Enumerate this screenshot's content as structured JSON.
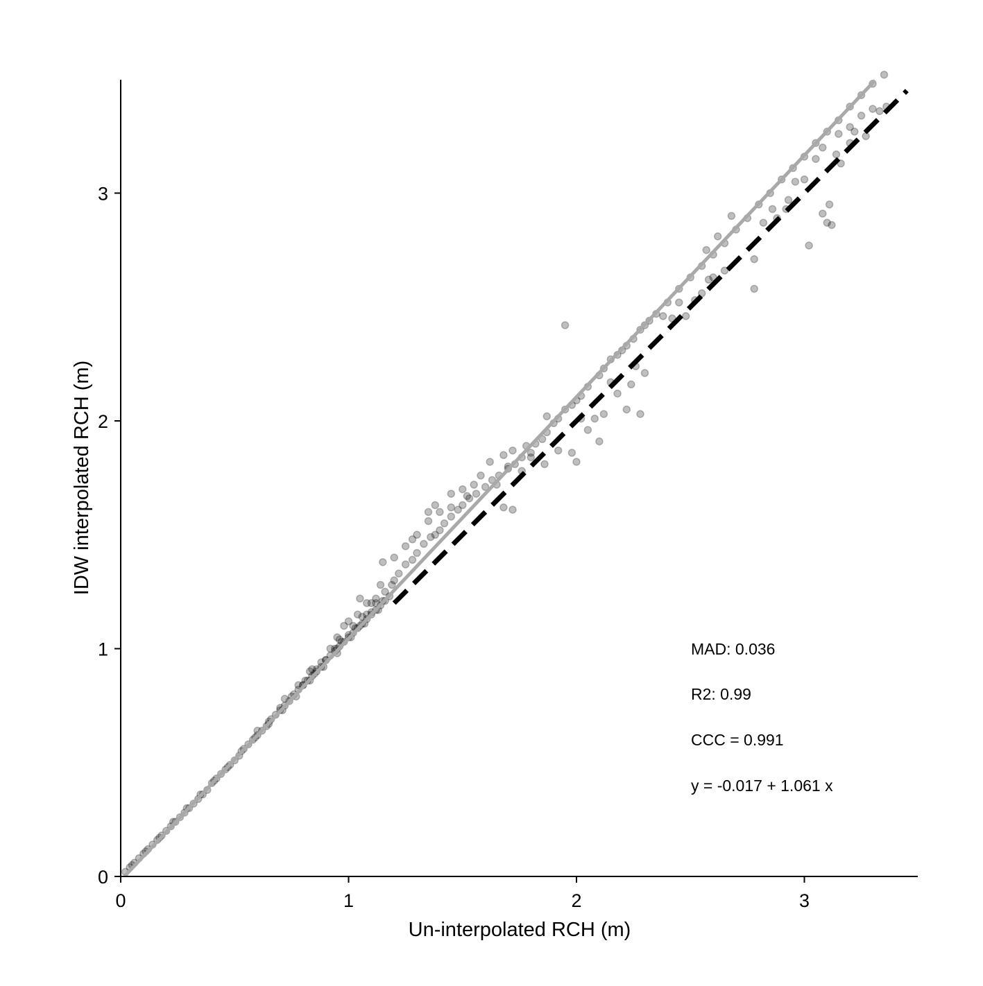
{
  "chart_data": {
    "type": "scatter",
    "xlabel": "Un-interpolated RCH (m)",
    "ylabel": "IDW interpolated RCH (m)",
    "xlim": [
      0,
      3.5
    ],
    "ylim": [
      0,
      3.5
    ],
    "x_ticks": [
      0,
      1,
      2,
      3
    ],
    "y_ticks": [
      0,
      1,
      2,
      3
    ],
    "x_tick_labels": [
      "0",
      "1",
      "2",
      "3"
    ],
    "y_tick_labels": [
      "0",
      "1",
      "2",
      "3"
    ],
    "grid": false,
    "marker_color": "#000000",
    "marker_opacity": 0.25,
    "fit_line_color": "#a9a9a9",
    "identity_line_color": "#000000",
    "annotations": {
      "mad": "MAD: 0.036",
      "r2": "R2: 0.99",
      "ccc": "CCC =  0.991",
      "equation": "y =  -0.017 + 1.061 x"
    },
    "fit_line": {
      "intercept": -0.017,
      "slope": 1.061,
      "x_range": [
        0.02,
        3.31
      ]
    },
    "identity_line": {
      "x_range": [
        1.2,
        3.45
      ]
    },
    "series": [
      {
        "x": [
          0.02,
          0.04,
          0.06,
          0.08,
          0.1,
          0.12,
          0.14,
          0.16,
          0.18,
          0.2,
          0.22,
          0.24,
          0.26,
          0.28,
          0.3,
          0.32,
          0.34,
          0.36,
          0.38,
          0.4,
          0.42,
          0.44,
          0.46,
          0.48,
          0.5,
          0.52,
          0.54,
          0.56,
          0.58,
          0.6,
          0.62,
          0.64,
          0.66,
          0.68,
          0.7,
          0.72,
          0.74,
          0.76,
          0.78,
          0.8,
          0.82,
          0.84,
          0.86,
          0.88,
          0.9,
          0.92,
          0.94,
          0.96,
          0.98,
          1.0,
          1.02,
          1.04,
          1.06,
          1.08,
          1.1,
          1.12,
          1.14,
          1.16,
          1.18,
          0.05,
          0.11,
          0.17,
          0.23,
          0.29,
          0.35,
          0.41,
          0.47,
          0.53,
          0.59,
          0.65,
          0.71,
          0.77,
          0.83,
          0.89,
          0.95,
          1.01,
          1.07,
          1.13,
          0.6,
          0.65,
          0.7,
          0.75,
          0.8,
          0.85,
          0.9,
          0.95,
          1.0,
          1.05,
          1.1,
          1.15,
          0.72,
          0.78,
          0.84,
          0.88,
          0.92,
          0.96,
          1.02,
          1.06,
          1.12,
          0.83,
          0.94,
          0.97,
          1.03,
          1.08,
          0.81,
          0.86,
          0.95,
          0.98,
          1.0,
          1.04,
          1.08,
          1.1,
          1.12,
          1.16,
          1.19,
          1.05,
          1.14,
          1.2,
          1.22,
          1.25,
          1.28,
          1.3,
          1.33,
          1.36,
          1.38,
          1.4,
          1.42,
          1.45,
          1.48,
          1.5,
          1.53,
          1.56,
          1.6,
          1.63,
          1.66,
          1.7,
          1.73,
          1.76,
          1.8,
          1.3,
          1.35,
          1.4,
          1.45,
          1.55,
          1.15,
          1.2,
          1.25,
          1.28,
          1.35,
          1.38,
          1.45,
          1.5,
          1.62,
          1.68,
          1.72,
          1.78,
          1.82,
          1.65,
          1.7,
          1.58,
          1.52,
          1.85,
          1.87,
          1.9,
          1.92,
          1.95,
          1.98,
          2.0,
          2.02,
          2.05,
          2.1,
          2.12,
          2.15,
          2.18,
          2.2,
          2.22,
          2.25,
          2.28,
          2.3,
          2.32,
          2.35,
          2.4,
          2.45,
          2.5,
          2.55,
          2.6,
          2.65,
          2.7,
          2.75,
          2.8,
          2.85,
          2.9,
          2.95,
          3.0,
          3.05,
          3.1,
          3.15,
          3.2,
          3.25,
          3.3,
          3.35,
          1.87,
          1.98,
          2.0,
          2.08,
          2.15,
          2.18,
          2.22,
          2.28,
          2.42,
          2.45,
          2.48,
          2.52,
          2.58,
          2.6,
          2.65,
          2.78,
          2.88,
          2.92,
          3.02,
          3.08,
          3.1,
          3.11,
          3.12,
          3.14,
          3.16,
          3.2,
          1.68,
          1.72,
          1.76,
          1.8,
          1.86,
          1.92,
          1.95,
          2.02,
          2.05,
          2.1,
          2.12,
          2.24,
          2.26,
          2.3,
          2.38,
          2.55,
          2.57,
          2.62,
          2.68,
          2.78,
          2.82,
          2.86,
          2.93,
          2.96,
          3.0,
          3.05,
          3.08,
          3.15,
          3.2,
          3.25,
          3.22,
          3.27,
          3.3,
          3.33,
          3.36
        ],
        "y": [
          0.02,
          0.04,
          0.06,
          0.08,
          0.1,
          0.12,
          0.14,
          0.16,
          0.18,
          0.2,
          0.22,
          0.24,
          0.26,
          0.28,
          0.3,
          0.32,
          0.34,
          0.36,
          0.38,
          0.41,
          0.43,
          0.45,
          0.47,
          0.49,
          0.51,
          0.53,
          0.56,
          0.58,
          0.6,
          0.62,
          0.64,
          0.66,
          0.69,
          0.71,
          0.73,
          0.75,
          0.77,
          0.8,
          0.82,
          0.84,
          0.86,
          0.88,
          0.9,
          0.92,
          0.95,
          0.97,
          0.99,
          1.01,
          1.03,
          1.05,
          1.07,
          1.09,
          1.11,
          1.13,
          1.15,
          1.17,
          1.19,
          1.21,
          1.23,
          0.05,
          0.11,
          0.17,
          0.24,
          0.3,
          0.36,
          0.42,
          0.48,
          0.55,
          0.61,
          0.67,
          0.73,
          0.79,
          0.86,
          0.92,
          0.98,
          1.05,
          1.11,
          1.17,
          0.64,
          0.68,
          0.74,
          0.79,
          0.84,
          0.89,
          0.95,
          1.0,
          1.06,
          1.1,
          1.16,
          1.21,
          0.78,
          0.84,
          0.91,
          0.94,
          1.0,
          1.04,
          1.1,
          1.14,
          1.2,
          0.9,
          1.0,
          1.03,
          1.09,
          1.15,
          0.86,
          0.91,
          1.05,
          1.1,
          1.12,
          1.15,
          1.2,
          1.2,
          1.22,
          1.25,
          1.28,
          1.22,
          1.28,
          1.3,
          1.33,
          1.37,
          1.39,
          1.42,
          1.46,
          1.49,
          1.5,
          1.52,
          1.55,
          1.58,
          1.61,
          1.63,
          1.66,
          1.68,
          1.71,
          1.74,
          1.76,
          1.79,
          1.81,
          1.84,
          1.86,
          1.5,
          1.56,
          1.6,
          1.62,
          1.72,
          1.38,
          1.4,
          1.45,
          1.48,
          1.6,
          1.63,
          1.68,
          1.7,
          1.82,
          1.85,
          1.87,
          1.89,
          1.9,
          1.72,
          1.8,
          1.76,
          1.67,
          1.92,
          1.95,
          1.99,
          2.01,
          2.05,
          2.07,
          2.09,
          2.11,
          2.15,
          2.2,
          2.23,
          2.27,
          2.29,
          2.31,
          2.33,
          2.36,
          2.4,
          2.42,
          2.44,
          2.47,
          2.52,
          2.58,
          2.63,
          2.68,
          2.73,
          2.78,
          2.84,
          2.89,
          2.95,
          3.0,
          3.06,
          3.11,
          3.16,
          3.22,
          3.27,
          3.32,
          3.38,
          3.43,
          3.48,
          3.52,
          2.02,
          1.86,
          1.82,
          2.01,
          2.17,
          2.12,
          2.05,
          2.03,
          2.45,
          2.52,
          2.46,
          2.53,
          2.62,
          2.63,
          2.66,
          2.58,
          2.89,
          2.93,
          2.77,
          2.91,
          2.87,
          2.95,
          2.86,
          3.17,
          3.13,
          3.22,
          1.62,
          1.61,
          1.78,
          1.84,
          1.81,
          1.87,
          2.42,
          2.01,
          1.96,
          1.91,
          2.03,
          2.16,
          2.24,
          2.21,
          2.46,
          2.56,
          2.75,
          2.81,
          2.9,
          2.71,
          2.87,
          2.93,
          2.97,
          3.05,
          3.06,
          3.15,
          3.2,
          3.26,
          3.29,
          3.34,
          3.27,
          3.25,
          3.37,
          3.36,
          3.38
        ]
      }
    ]
  }
}
